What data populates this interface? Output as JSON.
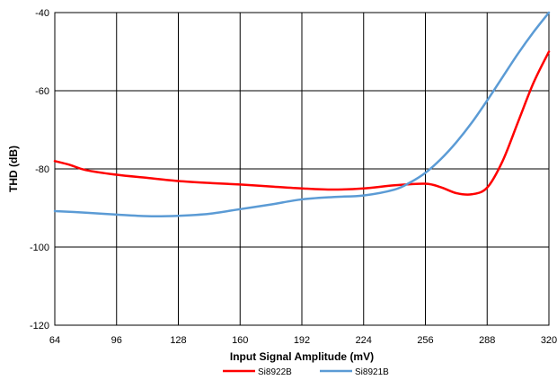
{
  "chart_data": {
    "type": "line",
    "xlabel": "Input Signal Amplitude (mV)",
    "ylabel": "THD (dB)",
    "xlim": [
      64,
      320
    ],
    "ylim": [
      -120,
      -40
    ],
    "xticks": [
      64,
      96,
      128,
      160,
      192,
      224,
      256,
      288,
      320
    ],
    "yticks": [
      -120,
      -100,
      -80,
      -60,
      -40
    ],
    "xtick_labels": [
      "64",
      "96",
      "128",
      "160",
      "192",
      "224",
      "256",
      "288",
      "320"
    ],
    "ytick_labels": [
      "-120",
      "-100",
      "-80",
      "-60",
      "-40"
    ],
    "grid": true,
    "legend_position": "bottom",
    "series": [
      {
        "name": "Si8922B",
        "color": "#ff0000",
        "x": [
          64,
          72,
          80,
          96,
          112,
          128,
          144,
          160,
          176,
          192,
          208,
          224,
          240,
          256,
          264,
          272,
          280,
          288,
          296,
          304,
          312,
          320
        ],
        "y": [
          -78,
          -79,
          -80.3,
          -81.5,
          -82.3,
          -83.1,
          -83.6,
          -84,
          -84.5,
          -85,
          -85.3,
          -85,
          -84.2,
          -83.8,
          -84.7,
          -86.2,
          -86.5,
          -84.8,
          -78,
          -68,
          -58,
          -50
        ]
      },
      {
        "name": "Si8921B",
        "color": "#5b9bd5",
        "x": [
          64,
          80,
          96,
          112,
          128,
          144,
          160,
          176,
          192,
          208,
          224,
          240,
          248,
          256,
          264,
          272,
          280,
          288,
          296,
          304,
          312,
          320
        ],
        "y": [
          -90.8,
          -91.2,
          -91.7,
          -92.1,
          -92,
          -91.5,
          -90.3,
          -89.1,
          -87.8,
          -87.2,
          -86.8,
          -85.3,
          -83.5,
          -81,
          -77.5,
          -73.2,
          -68.2,
          -62.5,
          -56.5,
          -50.5,
          -45,
          -40
        ]
      }
    ]
  }
}
